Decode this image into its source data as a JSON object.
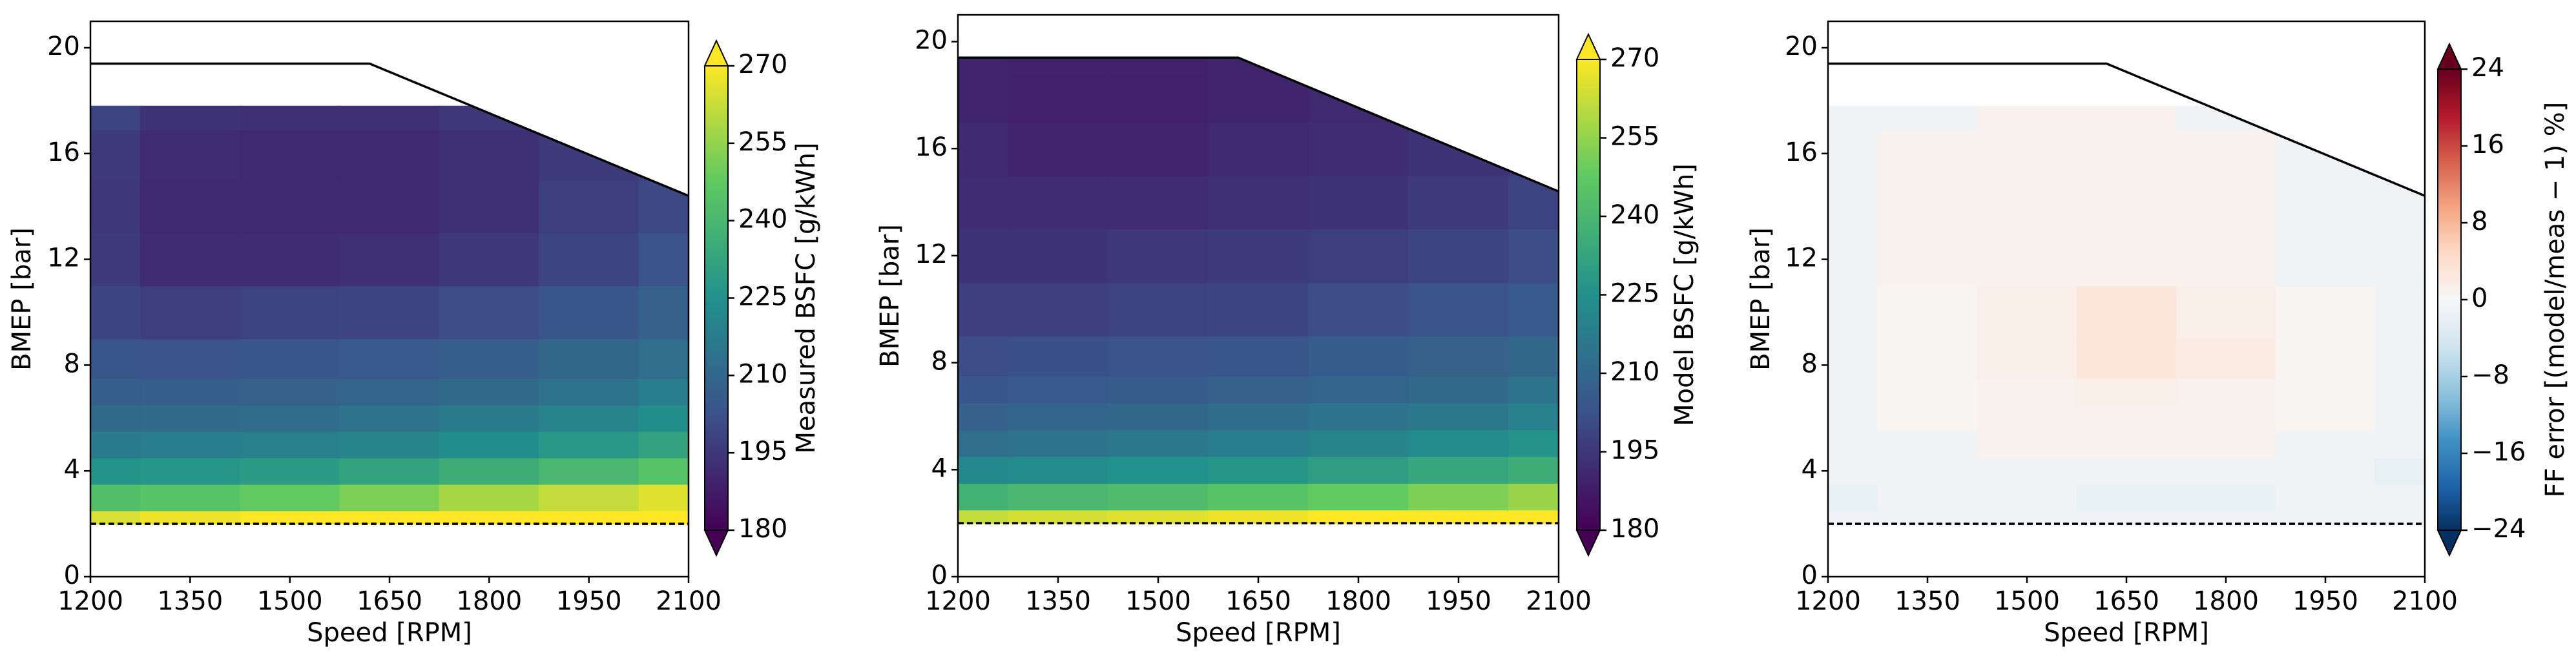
{
  "chart_data": [
    {
      "type": "contour",
      "xlabel": "Speed [RPM]",
      "ylabel": "BMEP [bar]",
      "colorbar_label": "Measured BSFC [g/kWh]",
      "xlim": [
        1200,
        2100
      ],
      "ylim": [
        0,
        21
      ],
      "xticks": [
        1200,
        1350,
        1500,
        1650,
        1800,
        1950,
        2100
      ],
      "yticks": [
        0,
        4,
        8,
        12,
        16,
        20
      ],
      "clim": [
        180,
        270
      ],
      "cticks": [
        180,
        195,
        210,
        225,
        240,
        255,
        270
      ],
      "colormap": [
        "#440154",
        "#3b528b",
        "#21918c",
        "#5ec962",
        "#fde725"
      ],
      "x": [
        1200,
        1350,
        1500,
        1650,
        1800,
        1950,
        2100
      ],
      "y": [
        2,
        3,
        4,
        5,
        6,
        7,
        8,
        10,
        12,
        14,
        16,
        17.8
      ],
      "z": [
        [
          265,
          268,
          270,
          272,
          275,
          278,
          280
        ],
        [
          243,
          245,
          248,
          252,
          258,
          262,
          266
        ],
        [
          226,
          227,
          229,
          232,
          236,
          240,
          245
        ],
        [
          217,
          218,
          219,
          221,
          224,
          228,
          232
        ],
        [
          211,
          211,
          212,
          214,
          217,
          220,
          224
        ],
        [
          207,
          207,
          208,
          209,
          211,
          214,
          218
        ],
        [
          204,
          203,
          204,
          205,
          207,
          210,
          213
        ],
        [
          199,
          197,
          198,
          199,
          201,
          204,
          208
        ],
        [
          196,
          192,
          192,
          193,
          195,
          199,
          203
        ],
        [
          195,
          191,
          191,
          191,
          193,
          197,
          200
        ],
        [
          196,
          192,
          191,
          191,
          193,
          196,
          199
        ],
        [
          198,
          194,
          193,
          193,
          195,
          197,
          199
        ]
      ],
      "lines": [
        {
          "x": [
            1200,
            1620,
            2100
          ],
          "y": [
            19.4,
            19.4,
            14.4
          ],
          "color": "#000000",
          "dashed": false
        },
        {
          "x": [
            1200,
            2100
          ],
          "y": [
            2,
            2
          ],
          "color": "#000000",
          "dashed": true
        }
      ]
    },
    {
      "type": "contour",
      "xlabel": "Speed [RPM]",
      "ylabel": "BMEP [bar]",
      "colorbar_label": "Model BSFC [g/kWh]",
      "xlim": [
        1200,
        2100
      ],
      "ylim": [
        0,
        21
      ],
      "xticks": [
        1200,
        1350,
        1500,
        1650,
        1800,
        1950,
        2100
      ],
      "yticks": [
        0,
        4,
        8,
        12,
        16,
        20
      ],
      "clim": [
        180,
        270
      ],
      "cticks": [
        180,
        195,
        210,
        225,
        240,
        255,
        270
      ],
      "colormap": [
        "#440154",
        "#3b528b",
        "#21918c",
        "#5ec962",
        "#fde725"
      ],
      "x": [
        1200,
        1350,
        1500,
        1650,
        1800,
        1950,
        2100
      ],
      "y": [
        2,
        3,
        4,
        5,
        6,
        7,
        8,
        10,
        12,
        14,
        16,
        18,
        19.4
      ],
      "z": [
        [
          262,
          264,
          266,
          268,
          270,
          272,
          275
        ],
        [
          238,
          240,
          242,
          245,
          248,
          252,
          256
        ],
        [
          222,
          223,
          225,
          227,
          230,
          233,
          236
        ],
        [
          213,
          214,
          216,
          218,
          220,
          223,
          226
        ],
        [
          208,
          209,
          210,
          212,
          214,
          216,
          219
        ],
        [
          204,
          205,
          206,
          208,
          209,
          211,
          214
        ],
        [
          201,
          202,
          203,
          204,
          206,
          208,
          210
        ],
        [
          197,
          197,
          198,
          199,
          201,
          203,
          205
        ],
        [
          194,
          194,
          195,
          196,
          197,
          199,
          201
        ],
        [
          192,
          192,
          192,
          193,
          194,
          196,
          198
        ],
        [
          191,
          190,
          190,
          191,
          192,
          194,
          196
        ],
        [
          190,
          189,
          189,
          190,
          191,
          193,
          195
        ],
        [
          190,
          189,
          189,
          190,
          191,
          193,
          195
        ]
      ],
      "lines": [
        {
          "x": [
            1200,
            1620,
            2100
          ],
          "y": [
            19.4,
            19.4,
            14.4
          ],
          "color": "#000000",
          "dashed": false
        },
        {
          "x": [
            1200,
            2100
          ],
          "y": [
            2,
            2
          ],
          "color": "#000000",
          "dashed": true
        }
      ]
    },
    {
      "type": "contour",
      "xlabel": "Speed [RPM]",
      "ylabel": "BMEP [bar]",
      "colorbar_label": "FF error  [(model/meas − 1) %]",
      "xlim": [
        1200,
        2100
      ],
      "ylim": [
        0,
        21
      ],
      "xticks": [
        1200,
        1350,
        1500,
        1650,
        1800,
        1950,
        2100
      ],
      "yticks": [
        0,
        4,
        8,
        12,
        16,
        20
      ],
      "clim": [
        -24,
        24
      ],
      "cticks": [
        {
          "value": -24,
          "label": "−24"
        },
        {
          "value": -16,
          "label": "−16"
        },
        {
          "value": -8,
          "label": "−8"
        },
        0,
        8,
        16,
        24
      ],
      "colormap": [
        "#053061",
        "#2166ac",
        "#4393c3",
        "#92c5de",
        "#d1e5f0",
        "#f7f7f7",
        "#fddbc7",
        "#f4a582",
        "#d6604d",
        "#b2182b",
        "#67001f"
      ],
      "x": [
        1200,
        1350,
        1500,
        1650,
        1800,
        1950,
        2100
      ],
      "y": [
        2,
        3,
        4,
        5,
        6,
        7,
        8,
        10,
        12,
        14,
        16,
        17.8
      ],
      "z": [
        [
          -1,
          -1,
          -1,
          -1,
          -1,
          -1,
          -1
        ],
        [
          -2,
          -1,
          -1,
          -2,
          -2,
          -1,
          -1
        ],
        [
          -1,
          -1,
          -1,
          -1,
          -1,
          -1,
          -2
        ],
        [
          -1,
          -1,
          1,
          1,
          1,
          -1,
          -1
        ],
        [
          -1,
          0.5,
          1,
          1,
          1,
          0.5,
          -1
        ],
        [
          -1,
          0.5,
          1,
          1.5,
          1,
          0.5,
          -1
        ],
        [
          -1,
          0.5,
          1.5,
          3,
          2,
          0.5,
          -1
        ],
        [
          -1,
          0.5,
          1.5,
          3,
          1.5,
          0.5,
          -1
        ],
        [
          -1,
          1,
          1,
          1,
          1,
          -1,
          -1
        ],
        [
          -1,
          1,
          1,
          1,
          1,
          -1,
          -1
        ],
        [
          -1,
          1,
          1,
          1,
          1,
          -1,
          -1
        ],
        [
          -1,
          -1,
          1,
          1,
          -1,
          -1,
          -1
        ]
      ],
      "lines": [
        {
          "x": [
            1200,
            1620,
            2100
          ],
          "y": [
            19.4,
            19.4,
            14.4
          ],
          "color": "#000000",
          "dashed": false
        },
        {
          "x": [
            1200,
            2100
          ],
          "y": [
            2,
            2
          ],
          "color": "#000000",
          "dashed": true
        }
      ]
    }
  ]
}
